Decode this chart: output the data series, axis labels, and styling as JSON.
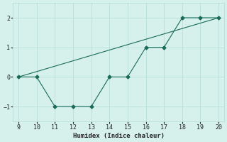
{
  "x": [
    9,
    10,
    11,
    12,
    13,
    14,
    15,
    16,
    17,
    18,
    19,
    20
  ],
  "y": [
    0,
    0,
    -1,
    -1,
    -1,
    0,
    0,
    1,
    1,
    2,
    2,
    2
  ],
  "trend_x": [
    9,
    20
  ],
  "trend_y": [
    0.0,
    2.0
  ],
  "xlabel": "Humidex (Indice chaleur)",
  "ylabel": "",
  "xlim": [
    8.7,
    20.3
  ],
  "ylim": [
    -1.5,
    2.5
  ],
  "yticks": [
    -1,
    0,
    1,
    2
  ],
  "xticks": [
    9,
    10,
    11,
    12,
    13,
    14,
    15,
    16,
    17,
    18,
    19,
    20
  ],
  "line_color": "#1a6b5a",
  "marker": "D",
  "marker_size": 2.5,
  "bg_color": "#d6f0ec",
  "grid_color": "#b8ddd8",
  "font_color": "#222222"
}
